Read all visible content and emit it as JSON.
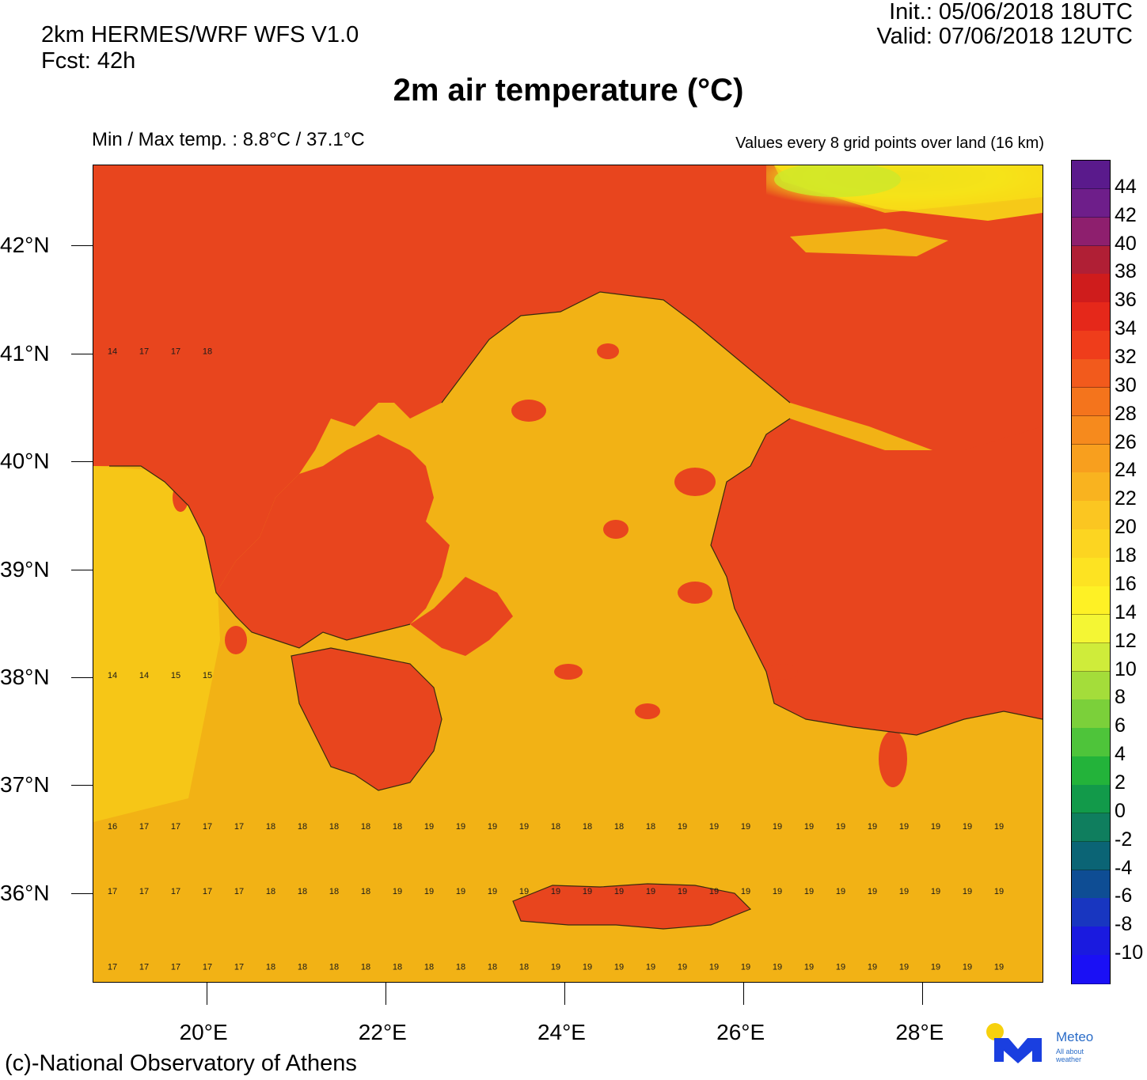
{
  "header": {
    "model": "2km HERMES/WRF WFS V1.0",
    "forecast": "Fcst: 42h",
    "init": "Init.:  05/06/2018 18UTC",
    "valid": "Valid: 07/06/2018 12UTC"
  },
  "title": "2m air temperature (°C)",
  "minmax": "Min / Max temp. : 8.8°C / 37.1°C",
  "note": "Values every 8 grid points over land (16 km)",
  "copyright": "(c)-National Observatory of Athens",
  "logo": {
    "name": "Meteo",
    "tagline1": "All about",
    "tagline2": "weather",
    "colors": {
      "sun": "#f7d10d",
      "m": "#1a3fe0",
      "text": "#2a6cc8"
    }
  },
  "map": {
    "lat_labels": [
      "42°N",
      "41°N",
      "40°N",
      "39°N",
      "38°N",
      "37°N",
      "36°N"
    ],
    "lat_values": [
      42,
      41,
      40,
      39,
      38,
      37,
      36
    ],
    "lon_labels": [
      "20°E",
      "22°E",
      "24°E",
      "26°E",
      "28°E"
    ],
    "lon_values": [
      20,
      22,
      24,
      26,
      28
    ],
    "lon_range": [
      18.73,
      29.35
    ],
    "lat_range": [
      35.17,
      42.75
    ],
    "colors": {
      "sea": "#f2b215",
      "land_hot": "#e8451e",
      "land_warm": "#f07a1a",
      "cool": "#f8e018",
      "cold": "#cde82a",
      "coast": "#3a2a10"
    }
  },
  "colorbar": {
    "labels": [
      "44",
      "42",
      "40",
      "38",
      "36",
      "34",
      "32",
      "30",
      "28",
      "26",
      "24",
      "22",
      "20",
      "18",
      "16",
      "14",
      "12",
      "10",
      "8",
      "6",
      "4",
      "2",
      "0",
      "-2",
      "-4",
      "-6",
      "-8",
      "-10"
    ],
    "colors": [
      "#5a1a8c",
      "#6e1e8a",
      "#8e1f6e",
      "#b01f35",
      "#cf1c1c",
      "#e5281a",
      "#ef3d1b",
      "#f25a1c",
      "#f4741c",
      "#f68a1d",
      "#f89f1e",
      "#f9b31f",
      "#fbc621",
      "#fcd521",
      "#fde322",
      "#fef125",
      "#f4f634",
      "#cfec3a",
      "#a4dd3a",
      "#7bd03a",
      "#4ec43a",
      "#23b33a",
      "#129a4a",
      "#0f7e5e",
      "#0b6475",
      "#0e4d94",
      "#1836c0",
      "#1a1adf",
      "#1a10f5"
    ]
  },
  "sea_value_rows": [
    {
      "lat": 41.0,
      "lon_start": 18.8,
      "values": [
        "14",
        "17",
        "17",
        "18"
      ]
    },
    {
      "lat": 38.0,
      "lon_start": 18.8,
      "values": [
        "14",
        "14",
        "15",
        "15"
      ]
    },
    {
      "lat": 36.6,
      "lon_start": 18.8,
      "values": [
        "16",
        "17",
        "17",
        "17",
        "17",
        "18",
        "18",
        "18",
        "18",
        "18",
        "19",
        "19",
        "19",
        "19",
        "18",
        "18",
        "18",
        "18",
        "19",
        "19",
        "19",
        "19",
        "19",
        "19",
        "19",
        "19",
        "19",
        "19",
        "19"
      ]
    },
    {
      "lat": 36.0,
      "lon_start": 18.8,
      "values": [
        "17",
        "17",
        "17",
        "17",
        "17",
        "18",
        "18",
        "18",
        "18",
        "19",
        "19",
        "19",
        "19",
        "19",
        "19",
        "19",
        "19",
        "19",
        "19",
        "19",
        "19",
        "19",
        "19",
        "19",
        "19",
        "19",
        "19",
        "19",
        "19"
      ]
    },
    {
      "lat": 35.3,
      "lon_start": 18.8,
      "values": [
        "17",
        "17",
        "17",
        "17",
        "17",
        "18",
        "18",
        "18",
        "18",
        "18",
        "18",
        "18",
        "18",
        "18",
        "19",
        "19",
        "19",
        "19",
        "19",
        "19",
        "19",
        "19",
        "19",
        "19",
        "19",
        "19",
        "19",
        "19",
        "19"
      ]
    }
  ]
}
